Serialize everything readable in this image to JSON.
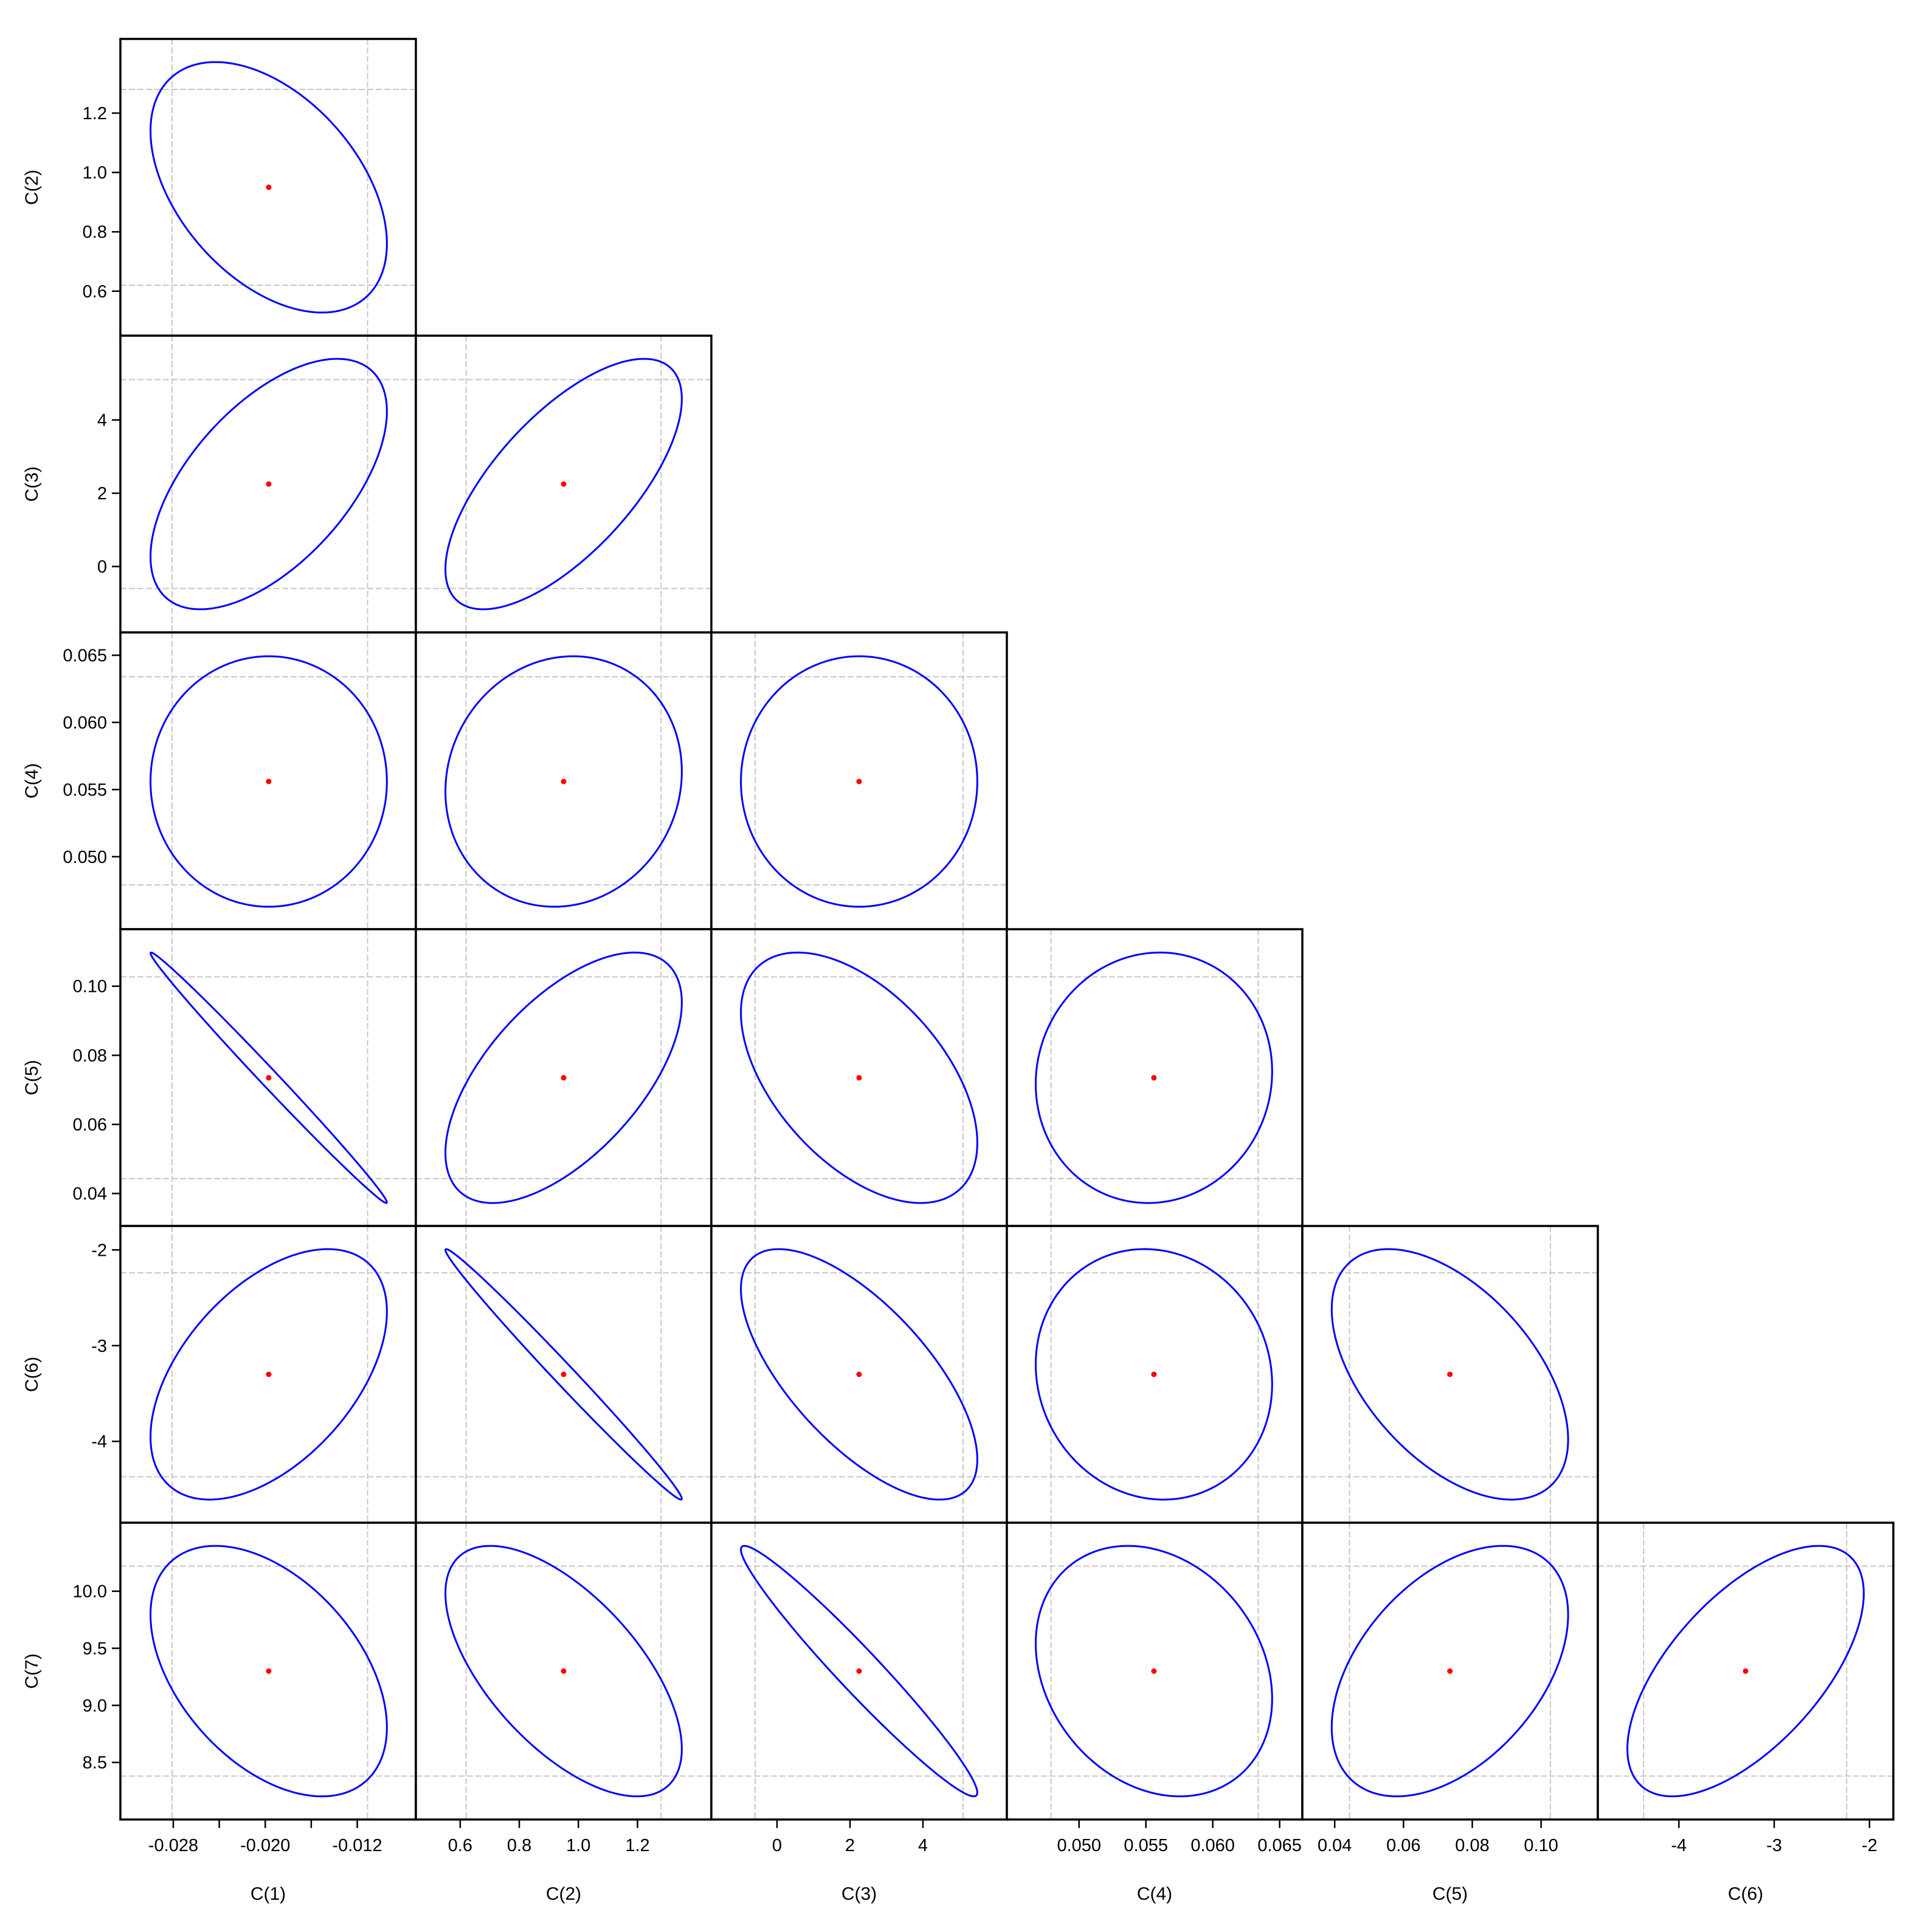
{
  "chart_data": {
    "type": "scatter",
    "title": "",
    "subtitle": "",
    "confidence_ellipse_color": "#0000ff",
    "center_point_color": "#ff0000",
    "grid": true,
    "grid_color": "#c8c8c8",
    "variables": [
      {
        "label": "C(1)",
        "estimate": -0.0197,
        "range": [
          -0.0326,
          -0.0069
        ],
        "reference_lines": [
          -0.0281,
          -0.0111
        ],
        "ticks": [
          -0.028,
          -0.024,
          -0.02,
          -0.016,
          -0.012
        ],
        "tick_labels": [
          "-0.028",
          "",
          "-0.020",
          "",
          "-0.012"
        ]
      },
      {
        "label": "C(2)",
        "estimate": 0.95,
        "range": [
          0.45,
          1.45
        ],
        "reference_lines": [
          0.62,
          1.28
        ],
        "ticks": [
          0.6,
          0.8,
          1.0,
          1.2
        ],
        "tick_labels": [
          "0.6",
          "0.8",
          "1.0",
          "1.2"
        ]
      },
      {
        "label": "C(3)",
        "estimate": 2.25,
        "range": [
          -1.8,
          6.3
        ],
        "reference_lines": [
          -0.6,
          5.1
        ],
        "ticks": [
          0,
          2,
          4
        ],
        "tick_labels": [
          "0",
          "2",
          "4"
        ]
      },
      {
        "label": "C(4)",
        "estimate": 0.0556,
        "range": [
          0.0446,
          0.0667
        ],
        "reference_lines": [
          0.0479,
          0.0634
        ],
        "ticks": [
          0.05,
          0.055,
          0.06,
          0.065
        ],
        "tick_labels": [
          "0.050",
          "0.055",
          "0.060",
          "0.065"
        ]
      },
      {
        "label": "C(5)",
        "estimate": 0.0735,
        "range": [
          0.0306,
          0.1165
        ],
        "reference_lines": [
          0.0443,
          0.1027
        ],
        "ticks": [
          0.04,
          0.06,
          0.08,
          0.1
        ],
        "tick_labels": [
          "0.04",
          "0.06",
          "0.08",
          "0.10"
        ]
      },
      {
        "label": "C(6)",
        "estimate": -3.3,
        "range": [
          -4.85,
          -1.75
        ],
        "reference_lines": [
          -4.37,
          -2.24
        ],
        "ticks": [
          -4,
          -3,
          -2
        ],
        "tick_labels": [
          "-4",
          "-3",
          "-2"
        ]
      },
      {
        "label": "C(7)",
        "estimate": 9.3,
        "range": [
          8.0,
          10.6
        ],
        "reference_lines": [
          8.38,
          10.22
        ],
        "ticks": [
          8.5,
          9.0,
          9.5,
          10.0
        ],
        "tick_labels": [
          "8.5",
          "9.0",
          "9.5",
          "10.0"
        ]
      }
    ],
    "correlations": [
      {
        "x": "C(1)",
        "y": "C(2)",
        "r": -0.45
      },
      {
        "x": "C(1)",
        "y": "C(3)",
        "r": 0.58
      },
      {
        "x": "C(2)",
        "y": "C(3)",
        "r": 0.68
      },
      {
        "x": "C(1)",
        "y": "C(4)",
        "r": 0.0
      },
      {
        "x": "C(2)",
        "y": "C(4)",
        "r": 0.08
      },
      {
        "x": "C(3)",
        "y": "C(4)",
        "r": 0.0
      },
      {
        "x": "C(1)",
        "y": "C(5)",
        "r": -0.995
      },
      {
        "x": "C(2)",
        "y": "C(5)",
        "r": 0.6
      },
      {
        "x": "C(3)",
        "y": "C(5)",
        "r": -0.52
      },
      {
        "x": "C(4)",
        "y": "C(5)",
        "r": 0.05
      },
      {
        "x": "C(1)",
        "y": "C(6)",
        "r": 0.5
      },
      {
        "x": "C(2)",
        "y": "C(6)",
        "r": -0.993
      },
      {
        "x": "C(3)",
        "y": "C(6)",
        "r": -0.68
      },
      {
        "x": "C(4)",
        "y": "C(6)",
        "r": -0.08
      },
      {
        "x": "C(5)",
        "y": "C(6)",
        "r": -0.52
      },
      {
        "x": "C(1)",
        "y": "C(7)",
        "r": -0.45
      },
      {
        "x": "C(2)",
        "y": "C(7)",
        "r": -0.62
      },
      {
        "x": "C(3)",
        "y": "C(7)",
        "r": -0.97
      },
      {
        "x": "C(4)",
        "y": "C(7)",
        "r": -0.22
      },
      {
        "x": "C(5)",
        "y": "C(7)",
        "r": 0.45
      },
      {
        "x": "C(6)",
        "y": "C(7)",
        "r": 0.62
      }
    ]
  }
}
